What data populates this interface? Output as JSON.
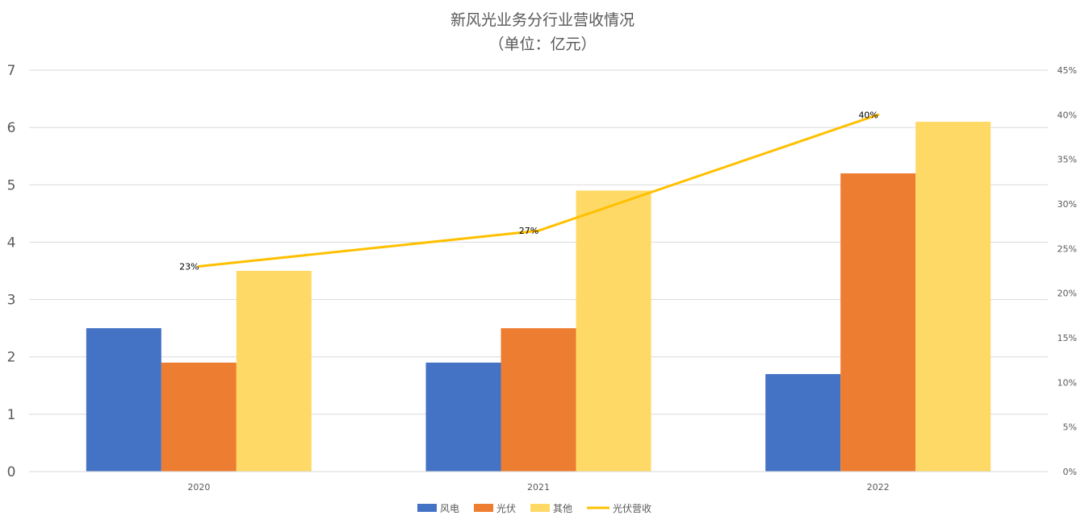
{
  "chart_data": {
    "type": "bar",
    "title": "新风光业务分行业营收情况",
    "subtitle": "（单位：亿元）",
    "categories": [
      "2020",
      "2021",
      "2022"
    ],
    "series": [
      {
        "name": "风电",
        "kind": "bar",
        "axis": "left",
        "color": "#4472C4",
        "values": [
          2.5,
          1.9,
          1.7
        ]
      },
      {
        "name": "光伏",
        "kind": "bar",
        "axis": "left",
        "color": "#ED7D31",
        "values": [
          1.9,
          2.5,
          5.2
        ]
      },
      {
        "name": "其他",
        "kind": "bar",
        "axis": "left",
        "color": "#FFD966",
        "values": [
          3.5,
          4.9,
          6.1
        ]
      },
      {
        "name": "光伏营收",
        "kind": "line",
        "axis": "right",
        "color": "#FFC000",
        "values": [
          0.23,
          0.27,
          0.4
        ],
        "data_labels": [
          "23%",
          "27%",
          "40%"
        ]
      }
    ],
    "y_left": {
      "ylim": [
        0,
        7
      ],
      "ticks": [
        "0",
        "1",
        "2",
        "3",
        "4",
        "5",
        "6",
        "7"
      ]
    },
    "y_right": {
      "ylim": [
        0,
        0.45
      ],
      "ticks": [
        "0%",
        "5%",
        "10%",
        "15%",
        "20%",
        "25%",
        "30%",
        "35%",
        "40%",
        "45%"
      ]
    },
    "grid": true,
    "legend_position": "bottom"
  }
}
